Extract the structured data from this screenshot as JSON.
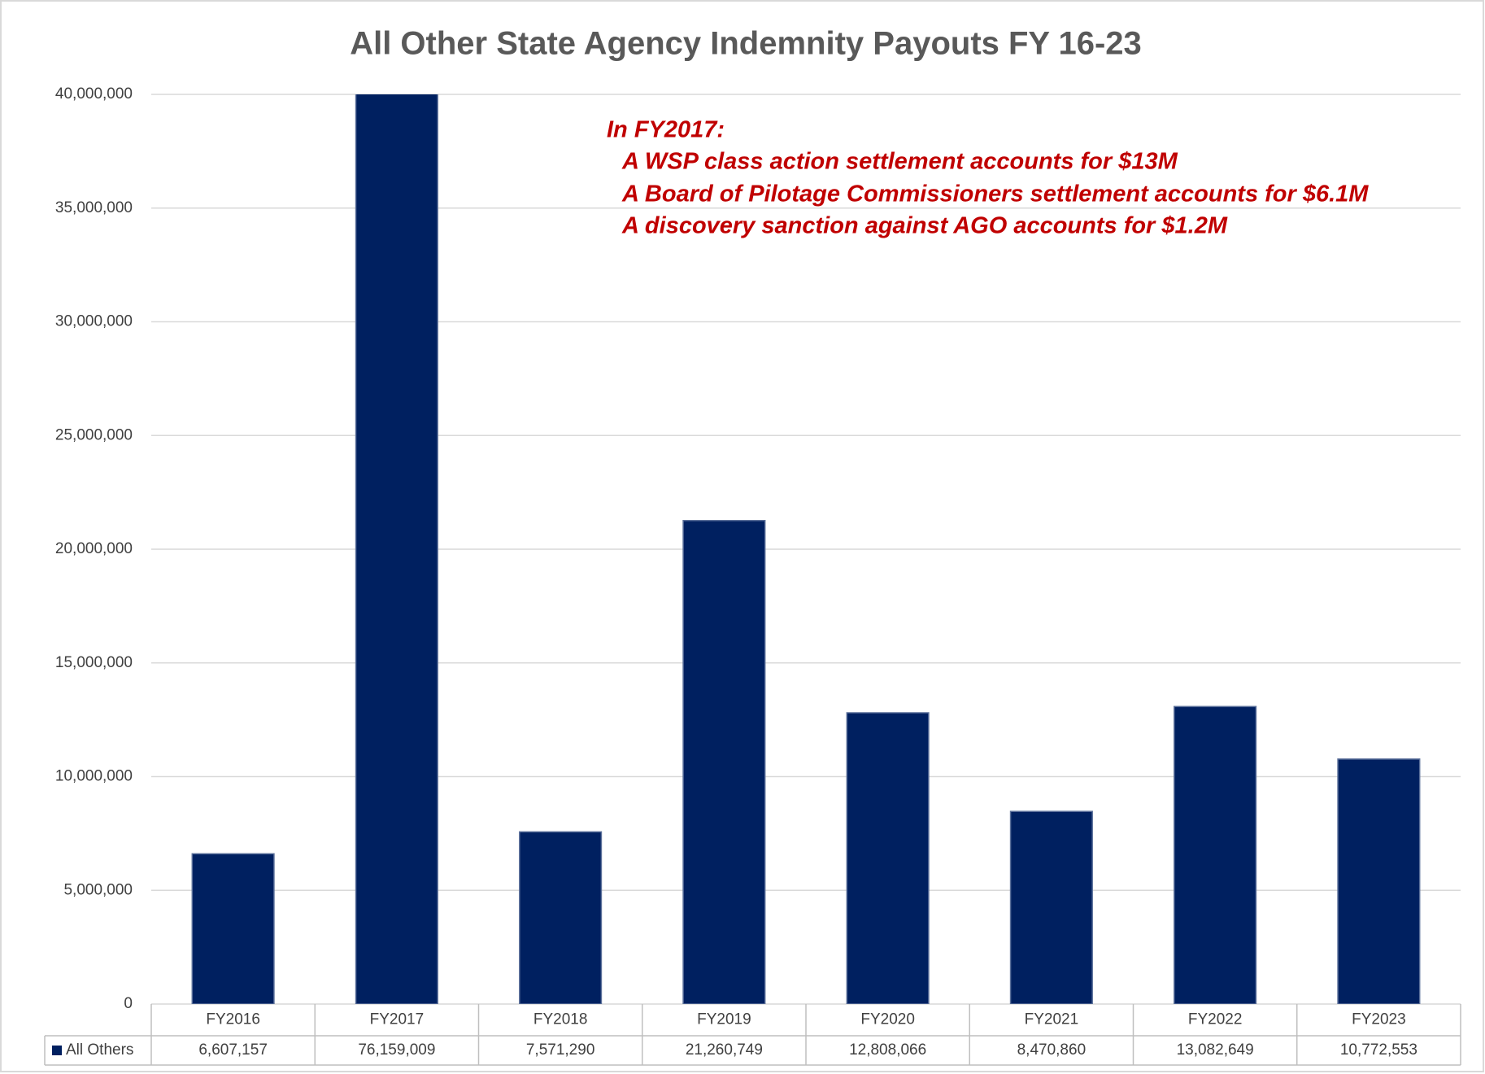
{
  "chart_data": {
    "type": "bar",
    "title": "All Other State Agency Indemnity Payouts FY 16-23",
    "categories": [
      "FY2016",
      "FY2017",
      "FY2018",
      "FY2019",
      "FY2020",
      "FY2021",
      "FY2022",
      "FY2023"
    ],
    "series": [
      {
        "name": "All Others",
        "color": "#002060",
        "values": [
          6607157,
          76159009,
          7571290,
          21260749,
          12808066,
          8470860,
          13082649,
          10772553
        ],
        "value_labels": [
          "6,607,157",
          "76,159,009",
          "7,571,290",
          "21,260,749",
          "12,808,066",
          "8,470,860",
          "13,082,649",
          "10,772,553"
        ]
      }
    ],
    "ylim": [
      0,
      40000000
    ],
    "yticks": [
      0,
      {
        "value": 5000000,
        "label": "5,000,000"
      },
      {
        "value": 10000000,
        "label": "10,000,000"
      },
      {
        "value": 15000000,
        "label": "15,000,000"
      },
      {
        "value": 20000000,
        "label": "20,000,000"
      },
      {
        "value": 25000000,
        "label": "25,000,000"
      },
      {
        "value": 30000000,
        "label": "30,000,000"
      },
      {
        "value": 35000000,
        "label": "35,000,000"
      },
      {
        "value": 40000000,
        "label": "40,000,000"
      }
    ],
    "grid": true,
    "annotations": [
      "In FY2017:",
      "A WSP class action settlement accounts for $13M",
      "A Board of Pilotage Commissioners settlement accounts for $6.1M",
      "A discovery sanction against AGO accounts for $1.2M"
    ]
  }
}
